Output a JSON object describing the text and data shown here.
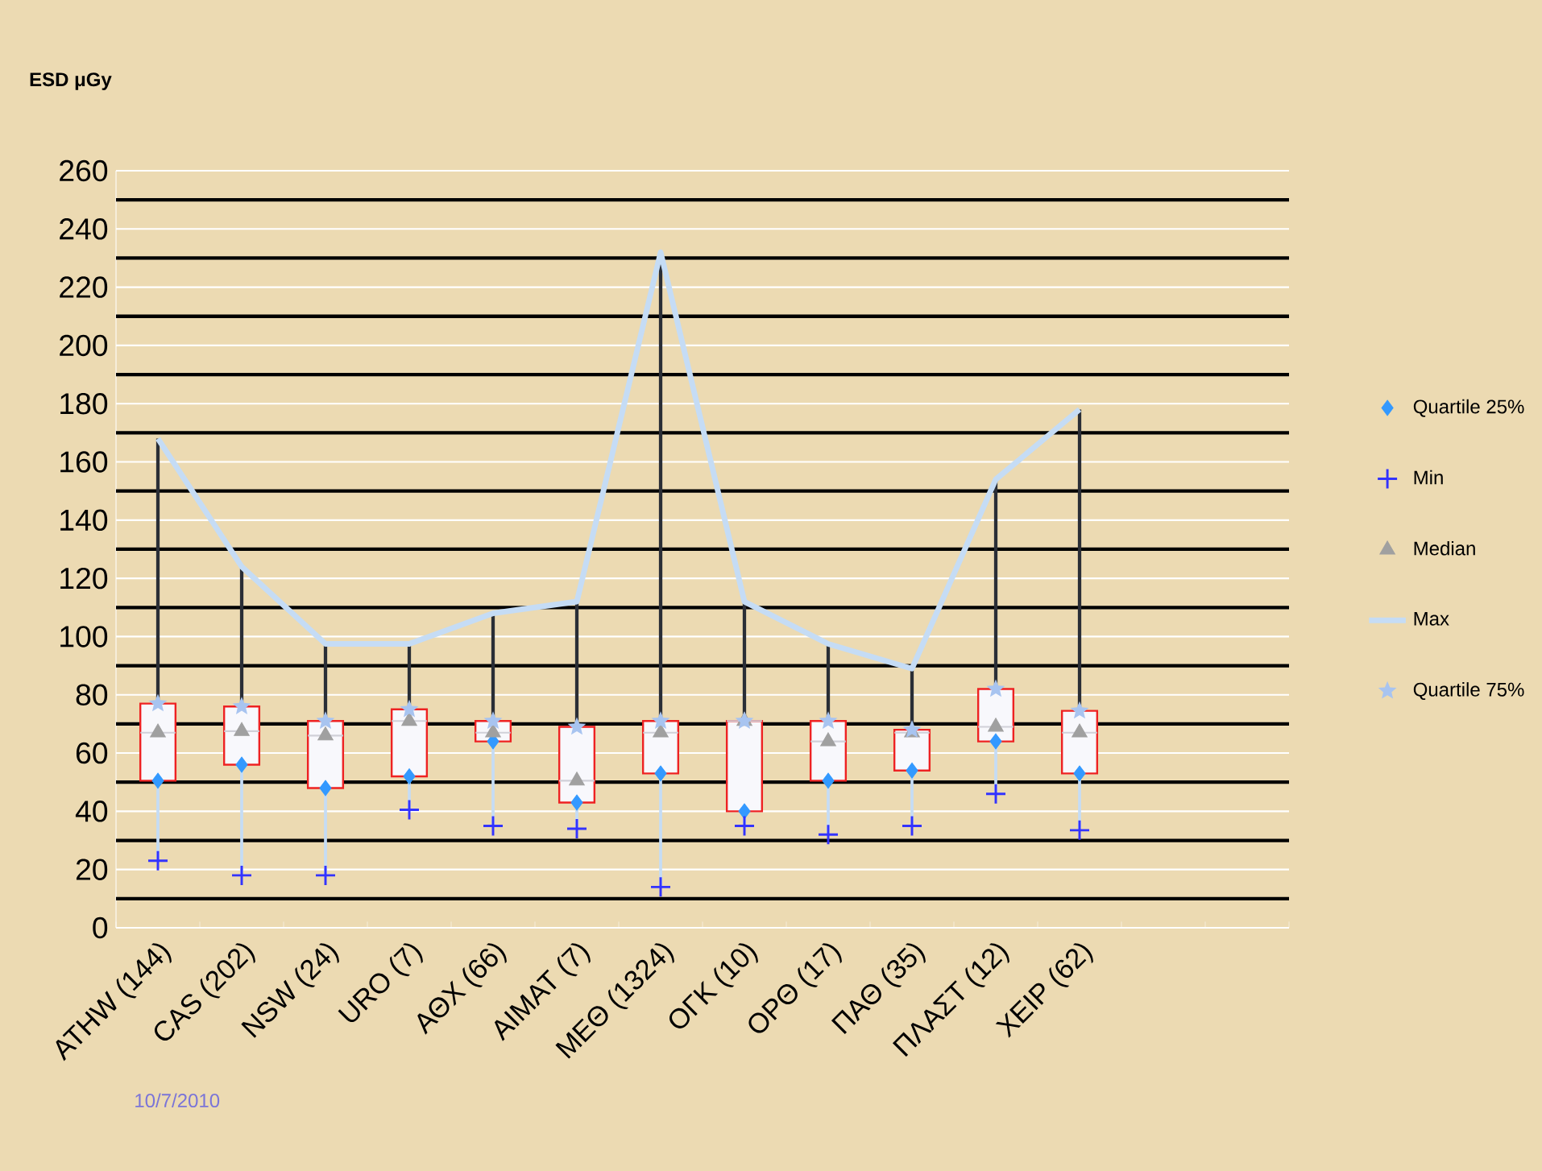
{
  "chart_data": {
    "type": "box",
    "ylabel": "ESD μGy",
    "categories": [
      "ATHW (144)",
      "CAS (202)",
      "NSW (24)",
      "URO (7)",
      "ΑΘΧ (66)",
      "ΑΙΜΑΤ (7)",
      "ΜΕΘ (1324)",
      "ΟΓΚ (10)",
      "ΟΡΘ (17)",
      "ΠΑΘ (35)",
      "ΠΛΑΣΤ (12)",
      "ΧΕΙΡ (62)",
      null,
      null
    ],
    "boxes": [
      {
        "low": 23,
        "q1": 50.5,
        "median": 67,
        "q3": 77,
        "high": 168
      },
      {
        "low": 18,
        "q1": 56,
        "median": 67.5,
        "q3": 76,
        "high": 124
      },
      {
        "low": 18,
        "q1": 48,
        "median": 66,
        "q3": 71,
        "high": 97.5
      },
      {
        "low": 40.5,
        "q1": 52,
        "median": 71,
        "q3": 75,
        "high": 97.5
      },
      {
        "low": 35,
        "q1": 64,
        "median": 67,
        "q3": 71,
        "high": 108
      },
      {
        "low": 34,
        "q1": 43,
        "median": 50.5,
        "q3": 69,
        "high": 112
      },
      {
        "low": 14,
        "q1": 53,
        "median": 67,
        "q3": 71,
        "high": 232
      },
      {
        "low": 35,
        "q1": 40,
        "median": 71,
        "q3": 71,
        "high": 112
      },
      {
        "low": 32,
        "q1": 50.5,
        "median": 64,
        "q3": 71,
        "high": 97.5
      },
      {
        "low": 35,
        "q1": 54,
        "median": 67,
        "q3": 68,
        "high": 89
      },
      {
        "low": 46,
        "q1": 64,
        "median": 69,
        "q3": 82,
        "high": 154
      },
      {
        "low": 33.5,
        "q1": 53,
        "median": 67,
        "q3": 74.5,
        "high": 178
      },
      null,
      null
    ],
    "series": [
      {
        "name": "Quartile 25%",
        "type": "scatter",
        "marker": "diamond",
        "color": "#3399ff",
        "values": [
          50.5,
          56,
          48,
          52,
          64,
          43,
          53,
          40,
          50.5,
          54,
          64,
          53,
          null,
          null
        ]
      },
      {
        "name": "Min",
        "type": "scatter",
        "marker": "cross",
        "color": "#3333ff",
        "values": [
          23,
          18,
          18,
          40.5,
          35,
          34,
          14,
          35,
          32,
          35,
          46,
          33.5,
          null,
          null
        ]
      },
      {
        "name": "Median",
        "type": "scatter",
        "marker": "triangle",
        "color": "#a0a0a0",
        "values": [
          67,
          67.5,
          66,
          71,
          67,
          50.5,
          67,
          71,
          64,
          67,
          69,
          67,
          null,
          null
        ]
      },
      {
        "name": "Max",
        "type": "line",
        "line_style": "solid",
        "color": "#c5dcf5",
        "values": [
          168,
          124,
          97.5,
          97.5,
          108,
          112,
          232,
          112,
          97.5,
          89,
          154,
          178,
          null,
          null
        ]
      },
      {
        "name": "Quartile 75%",
        "type": "scatter",
        "marker": "star",
        "color": "#a8c4f0",
        "values": [
          77,
          76,
          71,
          75,
          71,
          69,
          71,
          71,
          71,
          68,
          82,
          74.5,
          null,
          null
        ]
      }
    ],
    "ylim": [
      0,
      260
    ],
    "yticks": [
      0,
      20,
      40,
      60,
      80,
      100,
      120,
      140,
      160,
      180,
      200,
      220,
      240,
      260
    ],
    "grid": "y",
    "legend": "right",
    "ref_lines": [
      {
        "axis": "y",
        "value": 10,
        "color": "#000000"
      },
      {
        "axis": "y",
        "value": 30,
        "color": "#000000"
      },
      {
        "axis": "y",
        "value": 50,
        "color": "#000000"
      },
      {
        "axis": "y",
        "value": 70,
        "color": "#000000"
      },
      {
        "axis": "y",
        "value": 90,
        "color": "#000000"
      },
      {
        "axis": "y",
        "value": 110,
        "color": "#000000"
      },
      {
        "axis": "y",
        "value": 130,
        "color": "#000000"
      },
      {
        "axis": "y",
        "value": 150,
        "color": "#000000"
      },
      {
        "axis": "y",
        "value": 170,
        "color": "#000000"
      },
      {
        "axis": "y",
        "value": 190,
        "color": "#000000"
      },
      {
        "axis": "y",
        "value": 210,
        "color": "#000000"
      },
      {
        "axis": "y",
        "value": 230,
        "color": "#000000"
      },
      {
        "axis": "y",
        "value": 250,
        "color": "#000000"
      }
    ],
    "annotations": [
      "10/7/2010"
    ]
  }
}
